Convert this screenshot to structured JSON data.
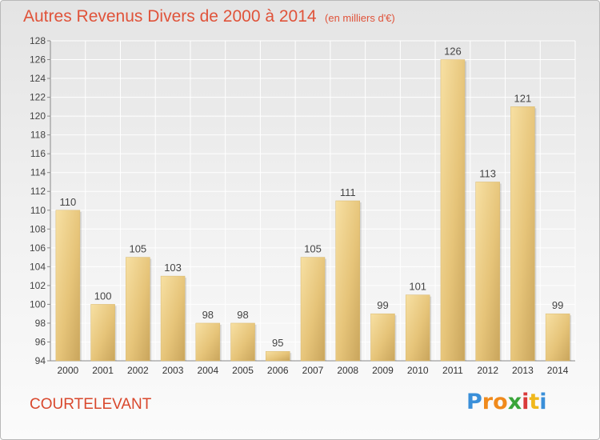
{
  "chart_data": {
    "type": "bar",
    "title": "Autres Revenus Divers de 2000 à 2014",
    "subtitle": "(en milliers d'€)",
    "categories": [
      "2000",
      "2001",
      "2002",
      "2003",
      "2004",
      "2005",
      "2006",
      "2007",
      "2008",
      "2009",
      "2010",
      "2011",
      "2012",
      "2013",
      "2014"
    ],
    "values": [
      110,
      100,
      105,
      103,
      98,
      98,
      95,
      105,
      111,
      99,
      101,
      126,
      113,
      121,
      99
    ],
    "ylim": [
      94,
      128
    ],
    "yticks": [
      94,
      96,
      98,
      100,
      102,
      104,
      106,
      108,
      110,
      112,
      114,
      116,
      118,
      120,
      122,
      124,
      126,
      128
    ],
    "grid": true,
    "legend": "none",
    "bar_color": "#e8c77a",
    "title_color": "#e0533a"
  },
  "footer": {
    "commune": "COURTELEVANT",
    "logo_text": "Proxiti",
    "logo_colors": [
      "#3a8fd9",
      "#f08a1c",
      "#f08a1c",
      "#3aa53a",
      "#d93a3a",
      "#f0b81c",
      "#3a8fd9"
    ]
  }
}
